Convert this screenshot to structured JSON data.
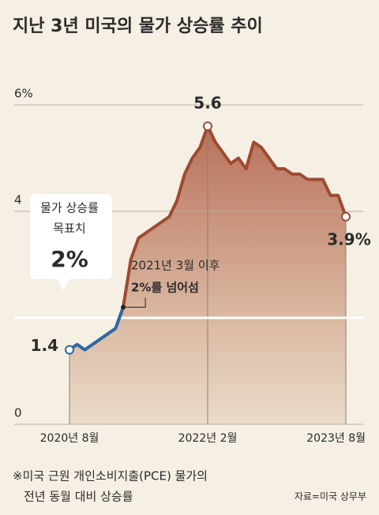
{
  "chart_data": {
    "type": "area-line",
    "title": "지난 3년 미국의 물가 상승률 추이",
    "categories": [
      "2020년 8월",
      null,
      null,
      null,
      null,
      null,
      null,
      null,
      null,
      null,
      null,
      null,
      null,
      null,
      null,
      null,
      null,
      null,
      "2022년 2월",
      null,
      null,
      null,
      null,
      null,
      null,
      null,
      null,
      null,
      null,
      null,
      null,
      null,
      null,
      null,
      null,
      null,
      "2023년 8월"
    ],
    "values": [
      1.4,
      1.5,
      1.4,
      1.5,
      1.6,
      1.7,
      1.8,
      2.2,
      3.1,
      3.5,
      3.6,
      3.7,
      3.8,
      3.9,
      4.2,
      4.7,
      5.0,
      5.2,
      5.6,
      5.3,
      5.1,
      4.9,
      5.0,
      4.8,
      5.3,
      5.2,
      5.0,
      4.8,
      4.8,
      4.7,
      4.7,
      4.6,
      4.6,
      4.6,
      4.3,
      4.3,
      3.9
    ],
    "value_labels": [
      "1.4",
      null,
      null,
      null,
      null,
      null,
      null,
      null,
      null,
      null,
      null,
      null,
      null,
      null,
      null,
      null,
      null,
      null,
      "5.6",
      null,
      null,
      null,
      null,
      null,
      null,
      null,
      null,
      null,
      null,
      null,
      null,
      null,
      null,
      null,
      null,
      null,
      "3.9%"
    ],
    "color": "#9e4a30",
    "below_target_color": "#2b6aa6",
    "ylim": [
      0,
      6
    ],
    "yticks": [
      0,
      4,
      {
        "value": 6,
        "label": "6%"
      }
    ],
    "grid": true,
    "target": {
      "value": 2,
      "lines": [
        "물가 상승률",
        "목표치"
      ],
      "value_label": "2%"
    },
    "annotation": {
      "index": 7,
      "lines": [
        "2021년 3월 이후",
        "2%를 넘어섬"
      ]
    },
    "footnote": [
      "※미국 근원 개인소비지출(PCE) 물가의",
      "전년 동월 대비 상승률"
    ],
    "source": "자료=미국 상무부"
  }
}
